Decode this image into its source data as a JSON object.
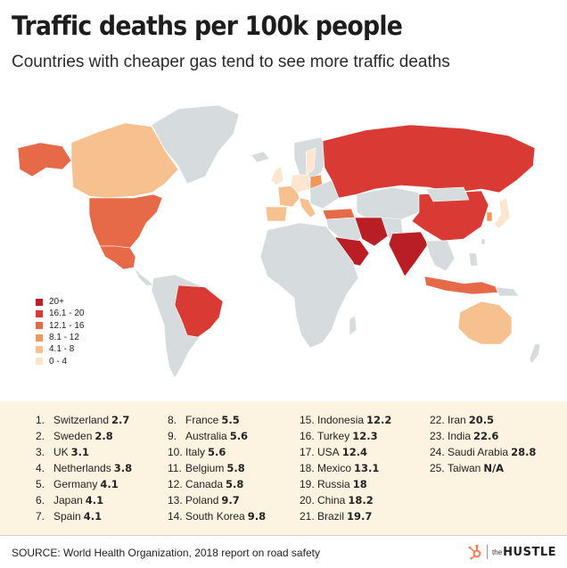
{
  "title": "Traffic deaths per 100k people",
  "subtitle": "Countries with cheaper gas tend to see more traffic deaths",
  "colors": {
    "none": "#d6dbdd",
    "c0_4": "#fde6cf",
    "c4_8": "#f7c08f",
    "c8_12": "#f0975d",
    "c12_16": "#e66a48",
    "c16_20": "#d93a33",
    "c20": "#b81e24",
    "panel": "#fdf3e1"
  },
  "legend": [
    {
      "label": "20+",
      "color": "#b81e24"
    },
    {
      "label": "16.1 - 20",
      "color": "#d93a33"
    },
    {
      "label": "12.1 - 16",
      "color": "#e66a48"
    },
    {
      "label": "8.1 - 12",
      "color": "#f0975d"
    },
    {
      "label": "4.1 - 8",
      "color": "#f7c08f"
    },
    {
      "label": "0 - 4",
      "color": "#fde6cf"
    }
  ],
  "ranking": [
    {
      "rank": "1.",
      "country": "Switzerland",
      "value": "2.7"
    },
    {
      "rank": "2.",
      "country": "Sweden",
      "value": "2.8"
    },
    {
      "rank": "3.",
      "country": "UK",
      "value": "3.1"
    },
    {
      "rank": "4.",
      "country": "Netherlands",
      "value": "3.8"
    },
    {
      "rank": "5.",
      "country": "Germany",
      "value": "4.1"
    },
    {
      "rank": "6.",
      "country": "Japan",
      "value": "4.1"
    },
    {
      "rank": "7.",
      "country": "Spain",
      "value": "4.1"
    },
    {
      "rank": "8.",
      "country": "France",
      "value": "5.5"
    },
    {
      "rank": "9.",
      "country": "Australia",
      "value": "5.6"
    },
    {
      "rank": "10.",
      "country": "Italy",
      "value": "5.6"
    },
    {
      "rank": "11.",
      "country": "Belgium",
      "value": "5.8"
    },
    {
      "rank": "12.",
      "country": "Canada",
      "value": "5.8"
    },
    {
      "rank": "13.",
      "country": "Poland",
      "value": "9.7"
    },
    {
      "rank": "14.",
      "country": "South Korea",
      "value": "9.8"
    },
    {
      "rank": "15.",
      "country": "Indonesia",
      "value": "12.2"
    },
    {
      "rank": "16.",
      "country": "Turkey",
      "value": "12.3"
    },
    {
      "rank": "17.",
      "country": "USA",
      "value": "12.4"
    },
    {
      "rank": "18.",
      "country": "Mexico",
      "value": "13.1"
    },
    {
      "rank": "19.",
      "country": "Russia",
      "value": "18"
    },
    {
      "rank": "20.",
      "country": "China",
      "value": "18.2"
    },
    {
      "rank": "21.",
      "country": "Brazil",
      "value": "19.7"
    },
    {
      "rank": "22.",
      "country": "Iran",
      "value": "20.5"
    },
    {
      "rank": "23.",
      "country": "India",
      "value": "22.6"
    },
    {
      "rank": "24.",
      "country": "Saudi Arabia",
      "value": "28.8"
    },
    {
      "rank": "25.",
      "country": "Taiwan",
      "value": "N/A"
    }
  ],
  "source": "SOURCE: World Health Organization, 2018 report on road safety",
  "logo": {
    "the": "the",
    "hustle": "HUSTLE"
  }
}
